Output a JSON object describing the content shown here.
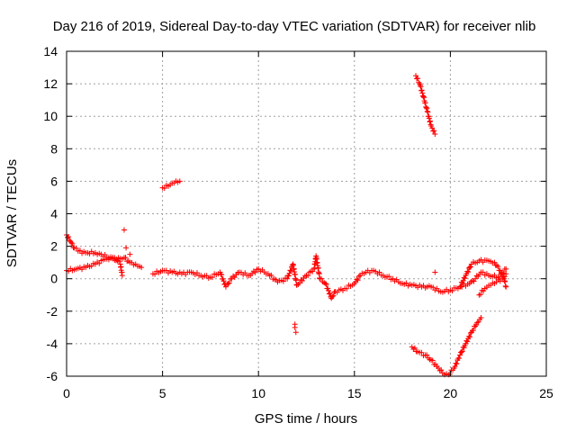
{
  "chart_data": {
    "type": "scatter",
    "title": "Day 216 of 2019, Sidereal Day-to-day VTEC variation (SDTVAR) for receiver nlib",
    "xlabel": "GPS time / hours",
    "ylabel": "SDTVAR / TECUs",
    "xlim": [
      0,
      25
    ],
    "ylim": [
      -6,
      14
    ],
    "xticks": [
      0,
      5,
      10,
      15,
      20,
      25
    ],
    "yticks": [
      -6,
      -4,
      -2,
      0,
      2,
      4,
      6,
      8,
      10,
      12,
      14
    ],
    "grid": true,
    "marker": "+",
    "series": [
      {
        "name": "main-upper-track",
        "color": "#ff0000",
        "points": [
          [
            0.0,
            2.7
          ],
          [
            0.2,
            2.3
          ],
          [
            0.4,
            1.9
          ],
          [
            0.6,
            1.7
          ],
          [
            1.0,
            1.6
          ],
          [
            1.5,
            1.6
          ],
          [
            1.8,
            1.5
          ],
          [
            2.2,
            1.3
          ],
          [
            2.6,
            1.2
          ],
          [
            3.0,
            1.3
          ],
          [
            3.3,
            1.0
          ],
          [
            3.6,
            0.9
          ],
          [
            3.9,
            0.7
          ]
        ]
      },
      {
        "name": "main-lower-track",
        "color": "#ff0000",
        "points": [
          [
            0.0,
            0.5
          ],
          [
            0.5,
            0.6
          ],
          [
            1.0,
            0.7
          ],
          [
            1.5,
            0.9
          ],
          [
            2.0,
            1.2
          ],
          [
            2.5,
            1.3
          ],
          [
            2.8,
            0.9
          ],
          [
            2.9,
            0.2
          ]
        ]
      },
      {
        "name": "main-band-5-14h",
        "color": "#ff0000",
        "points": [
          [
            4.5,
            0.3
          ],
          [
            5.0,
            0.5
          ],
          [
            5.5,
            0.4
          ],
          [
            6.0,
            0.3
          ],
          [
            6.5,
            0.4
          ],
          [
            7.0,
            0.2
          ],
          [
            7.5,
            0.1
          ],
          [
            8.0,
            0.4
          ],
          [
            8.3,
            -0.5
          ],
          [
            8.6,
            0.0
          ],
          [
            9.0,
            0.4
          ],
          [
            9.5,
            0.2
          ],
          [
            10.0,
            0.6
          ],
          [
            10.5,
            0.3
          ],
          [
            11.0,
            -0.2
          ],
          [
            11.5,
            0.0
          ],
          [
            11.8,
            0.9
          ],
          [
            12.0,
            -0.4
          ],
          [
            12.5,
            0.2
          ],
          [
            12.9,
            0.6
          ],
          [
            13.0,
            1.4
          ],
          [
            13.2,
            0.0
          ],
          [
            13.5,
            -0.3
          ],
          [
            13.8,
            -1.2
          ],
          [
            14.0,
            -0.8
          ],
          [
            14.5,
            -0.6
          ],
          [
            15.0,
            -0.3
          ],
          [
            15.3,
            0.2
          ],
          [
            15.6,
            0.4
          ],
          [
            16.0,
            0.5
          ],
          [
            16.5,
            0.2
          ],
          [
            17.0,
            0.0
          ],
          [
            17.5,
            -0.3
          ],
          [
            18.0,
            -0.4
          ],
          [
            18.5,
            -0.5
          ],
          [
            19.0,
            -0.5
          ],
          [
            19.5,
            -0.8
          ],
          [
            20.0,
            -0.7
          ],
          [
            20.5,
            -0.5
          ],
          [
            21.0,
            -0.3
          ],
          [
            21.3,
            0.0
          ],
          [
            21.6,
            0.4
          ],
          [
            22.0,
            0.2
          ],
          [
            22.5,
            0.1
          ],
          [
            22.9,
            0.6
          ]
        ]
      },
      {
        "name": "upper-loop-20-23h",
        "color": "#ff0000",
        "points": [
          [
            20.5,
            -0.5
          ],
          [
            20.8,
            0.2
          ],
          [
            21.1,
            0.9
          ],
          [
            21.5,
            1.1
          ],
          [
            22.0,
            1.1
          ],
          [
            22.3,
            1.0
          ],
          [
            22.6,
            0.5
          ],
          [
            22.8,
            0.0
          ],
          [
            22.9,
            -0.5
          ]
        ]
      },
      {
        "name": "lower-loop-20-23h",
        "color": "#ff0000",
        "points": [
          [
            21.5,
            -1.0
          ],
          [
            21.8,
            -0.6
          ],
          [
            22.1,
            -0.4
          ],
          [
            22.4,
            -0.2
          ],
          [
            22.7,
            0.0
          ],
          [
            22.9,
            0.3
          ]
        ]
      },
      {
        "name": "high-arc-5h",
        "color": "#ff0000",
        "points": [
          [
            5.0,
            5.6
          ],
          [
            5.3,
            5.7
          ],
          [
            5.6,
            5.9
          ],
          [
            5.9,
            6.0
          ]
        ]
      },
      {
        "name": "steep-arc-18h",
        "color": "#ff0000",
        "points": [
          [
            18.2,
            12.5
          ],
          [
            18.4,
            12.0
          ],
          [
            18.6,
            11.2
          ],
          [
            18.8,
            10.3
          ],
          [
            19.0,
            9.4
          ],
          [
            19.2,
            8.9
          ]
        ]
      },
      {
        "name": "negative-dip-18-21h",
        "color": "#ff0000",
        "points": [
          [
            18.0,
            -4.2
          ],
          [
            18.3,
            -4.5
          ],
          [
            18.7,
            -4.7
          ],
          [
            19.0,
            -5.0
          ],
          [
            19.3,
            -5.4
          ],
          [
            19.6,
            -5.8
          ],
          [
            19.9,
            -5.9
          ],
          [
            20.2,
            -5.5
          ],
          [
            20.5,
            -4.7
          ],
          [
            20.8,
            -4.0
          ],
          [
            21.1,
            -3.3
          ],
          [
            21.4,
            -2.7
          ],
          [
            21.6,
            -2.4
          ]
        ]
      },
      {
        "name": "isolated-points",
        "color": "#ff0000",
        "points": [
          [
            3.0,
            3.0
          ],
          [
            11.9,
            -2.8
          ],
          [
            11.9,
            -3.0
          ],
          [
            11.95,
            -3.3
          ],
          [
            19.2,
            0.4
          ],
          [
            3.1,
            1.9
          ],
          [
            3.3,
            1.5
          ]
        ]
      }
    ]
  }
}
